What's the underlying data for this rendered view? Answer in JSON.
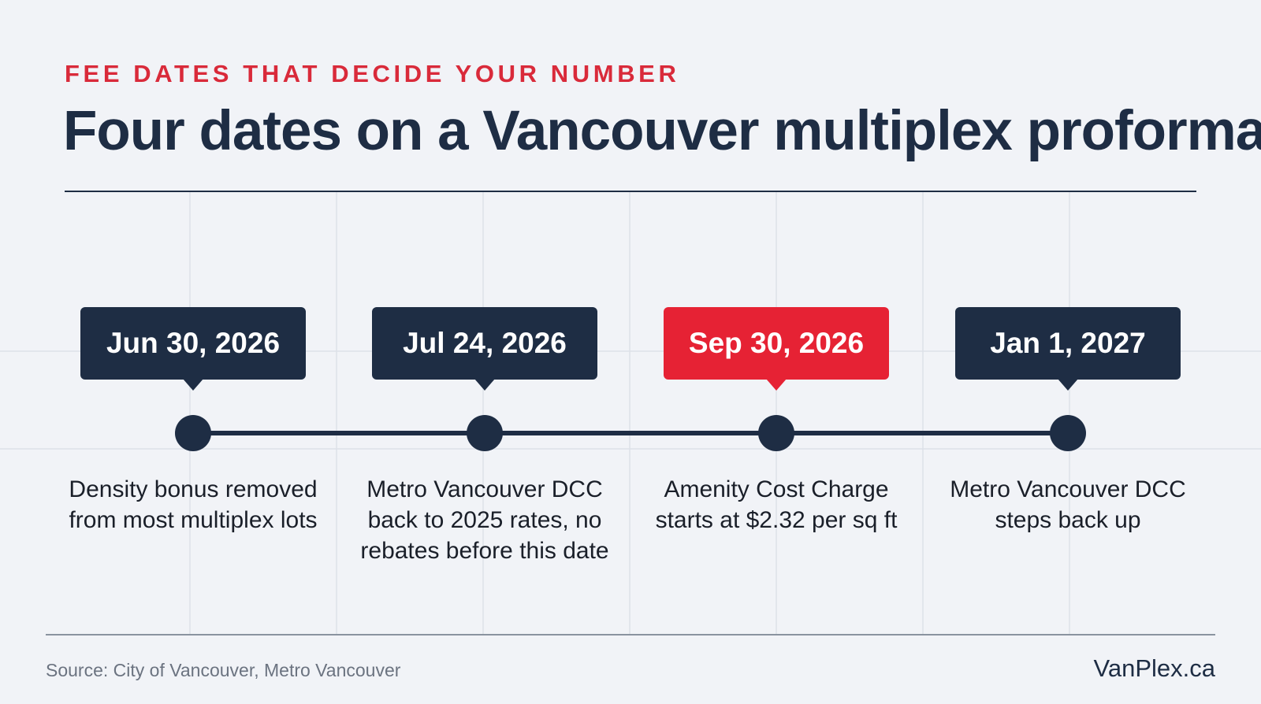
{
  "header": {
    "kicker": "FEE DATES THAT DECIDE YOUR NUMBER",
    "title": "Four dates on a Vancouver multiplex proforma"
  },
  "timeline": {
    "milestones": [
      {
        "date": "Jun 30, 2026",
        "description": "Density bonus removed from most multiplex lots",
        "highlight": false
      },
      {
        "date": "Jul 24, 2026",
        "description": "Metro Vancouver DCC back to 2025 rates, no rebates before this date",
        "highlight": false
      },
      {
        "date": "Sep 30, 2026",
        "description": "Amenity Cost Charge starts at $2.32 per sq ft",
        "highlight": true
      },
      {
        "date": "Jan 1, 2027",
        "description": "Metro Vancouver DCC steps back up",
        "highlight": false
      }
    ]
  },
  "footer": {
    "source": "Source: City of Vancouver, Metro Vancouver",
    "brand": "VanPlex.ca"
  },
  "colors": {
    "navy": "#1e2d44",
    "accent_red": "#e62234",
    "kicker_red": "#d92a3a",
    "background": "#f1f3f7"
  }
}
